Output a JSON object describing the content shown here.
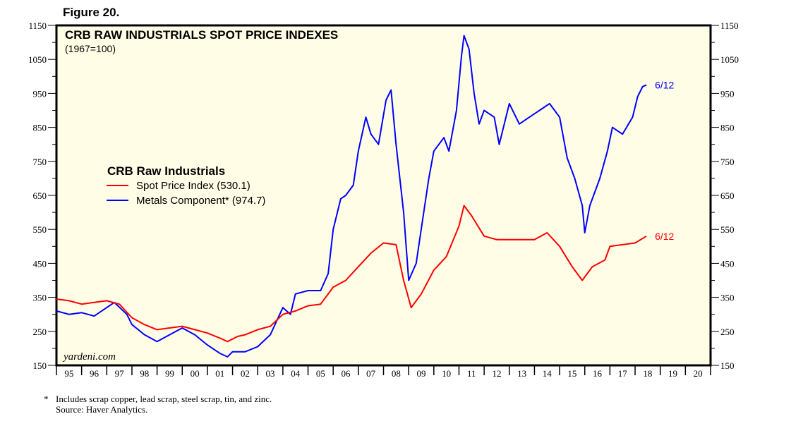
{
  "figure_label": "Figure 20.",
  "footnote": "Includes scrap copper, lead scrap, steel scrap, tin, and zinc.",
  "footnote_marker": "*",
  "source": "Source: Haver Analytics.",
  "chart_data": {
    "type": "line",
    "title": "CRB RAW INDUSTRIALS SPOT PRICE INDEXES",
    "subtitle": "(1967=100)",
    "watermark": "yardeni.com",
    "legend_title": "CRB Raw Industrials",
    "legend_placement": "upper-left",
    "background": "#fffde6",
    "xlim": [
      1995,
      2021
    ],
    "ylim": [
      150,
      1150
    ],
    "y_ticks": [
      150,
      250,
      350,
      450,
      550,
      650,
      750,
      850,
      950,
      1050,
      1150
    ],
    "x_tick_labels": [
      "95",
      "96",
      "97",
      "98",
      "99",
      "00",
      "01",
      "02",
      "03",
      "04",
      "05",
      "06",
      "07",
      "08",
      "09",
      "10",
      "11",
      "12",
      "13",
      "14",
      "15",
      "16",
      "17",
      "18",
      "19",
      "20"
    ],
    "grid": false,
    "series": [
      {
        "name": "Spot Price Index (530.1)",
        "color": "#ff0000",
        "end_label": "6/12",
        "x": [
          1995,
          1995.5,
          1996,
          1996.5,
          1997,
          1997.5,
          1998,
          1998.5,
          1999,
          1999.5,
          2000,
          2000.5,
          2001,
          2001.5,
          2001.8,
          2002.2,
          2002.5,
          2003,
          2003.5,
          2004,
          2004.5,
          2005,
          2005.5,
          2006,
          2006.5,
          2007,
          2007.5,
          2008,
          2008.5,
          2008.8,
          2009.1,
          2009.5,
          2010,
          2010.5,
          2011,
          2011.2,
          2011.5,
          2012,
          2012.5,
          2013,
          2013.5,
          2014,
          2014.5,
          2015,
          2015.5,
          2015.9,
          2016.3,
          2016.8,
          2017,
          2017.5,
          2018,
          2018.45
        ],
        "values": [
          345,
          340,
          330,
          335,
          340,
          330,
          290,
          270,
          255,
          260,
          265,
          255,
          245,
          230,
          220,
          235,
          240,
          255,
          265,
          300,
          310,
          325,
          330,
          380,
          400,
          440,
          480,
          510,
          505,
          400,
          320,
          360,
          430,
          470,
          560,
          620,
          590,
          530,
          520,
          520,
          520,
          520,
          540,
          500,
          440,
          400,
          440,
          460,
          500,
          505,
          510,
          530
        ]
      },
      {
        "name": "Metals Component* (974.7)",
        "color": "#0000ff",
        "end_label": "6/12",
        "x": [
          1995,
          1995.5,
          1996,
          1996.5,
          1997,
          1997.3,
          1997.8,
          1998,
          1998.5,
          1999,
          1999.5,
          2000,
          2000.5,
          2001,
          2001.5,
          2001.8,
          2002,
          2002.5,
          2003,
          2003.5,
          2004,
          2004.3,
          2004.5,
          2005,
          2005.5,
          2005.8,
          2006,
          2006.3,
          2006.5,
          2006.8,
          2007,
          2007.3,
          2007.5,
          2007.8,
          2008.1,
          2008.3,
          2008.5,
          2008.8,
          2009,
          2009.3,
          2009.6,
          2009.8,
          2010,
          2010.4,
          2010.6,
          2010.9,
          2011.1,
          2011.2,
          2011.4,
          2011.6,
          2011.8,
          2012,
          2012.4,
          2012.6,
          2013,
          2013.4,
          2013.8,
          2014.2,
          2014.6,
          2015,
          2015.3,
          2015.6,
          2015.9,
          2016,
          2016.2,
          2016.6,
          2016.9,
          2017.1,
          2017.5,
          2017.9,
          2018.1,
          2018.3,
          2018.45
        ],
        "values": [
          310,
          300,
          305,
          295,
          320,
          335,
          300,
          270,
          240,
          220,
          240,
          260,
          240,
          210,
          185,
          175,
          190,
          190,
          205,
          240,
          320,
          300,
          360,
          370,
          370,
          420,
          550,
          640,
          650,
          680,
          780,
          880,
          830,
          800,
          930,
          960,
          800,
          600,
          400,
          450,
          600,
          700,
          780,
          820,
          780,
          900,
          1060,
          1120,
          1080,
          950,
          860,
          900,
          880,
          800,
          920,
          860,
          880,
          900,
          920,
          880,
          760,
          700,
          620,
          540,
          620,
          700,
          780,
          850,
          830,
          880,
          940,
          970,
          975
        ]
      }
    ]
  }
}
